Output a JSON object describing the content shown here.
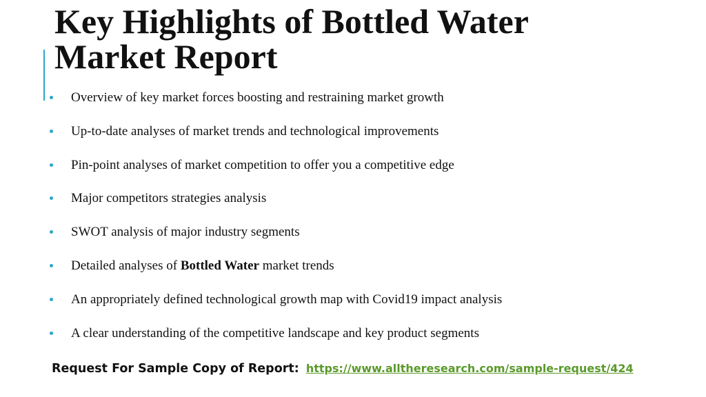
{
  "title": {
    "line1": "Key Highlights of Bottled Water",
    "line2": "Market Report"
  },
  "bullets": [
    {
      "text": "Overview of key market forces boosting and restraining market growth"
    },
    {
      "text": "Up-to-date analyses of market trends and technological improvements"
    },
    {
      "text": "Pin-point analyses of market competition to offer you a competitive edge"
    },
    {
      "text": "Major competitors strategies analysis"
    },
    {
      "text": "SWOT analysis of major industry segments"
    },
    {
      "before": "Detailed analyses of ",
      "bold": "Bottled Water",
      "after": " market trends"
    },
    {
      "text": "An appropriately defined technological growth map with Covid19 impact analysis"
    },
    {
      "text": "A clear understanding of the competitive landscape and key product segments"
    }
  ],
  "footer": {
    "label": "Request For Sample Copy of Report:",
    "link": "https://www.alltheresearch.com/sample-request/424"
  },
  "colors": {
    "accent": "#2aa7c9",
    "link": "#5a9a2a",
    "text": "#111111"
  }
}
